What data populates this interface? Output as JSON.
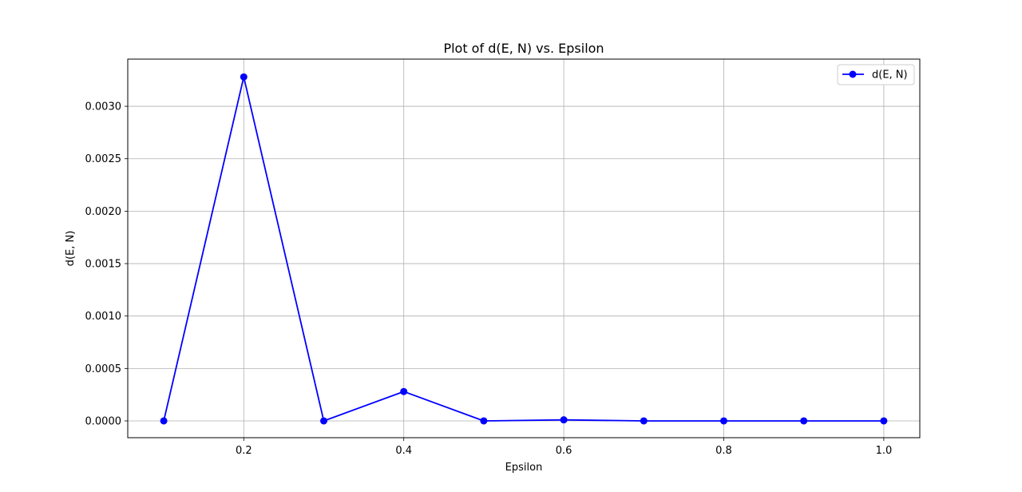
{
  "chart_data": {
    "type": "line",
    "title": "Plot of d(E, N) vs. Epsilon",
    "xlabel": "Epsilon",
    "ylabel": "d(E, N)",
    "xlim": [
      0.055,
      1.045
    ],
    "ylim": [
      -0.00016,
      0.00345
    ],
    "x_ticks": [
      0.2,
      0.4,
      0.6,
      0.8,
      1.0
    ],
    "x_tick_labels": [
      "0.2",
      "0.4",
      "0.6",
      "0.8",
      "1.0"
    ],
    "y_ticks": [
      0.0,
      0.0005,
      0.001,
      0.0015,
      0.002,
      0.0025,
      0.003
    ],
    "y_tick_labels": [
      "0.0000",
      "0.0005",
      "0.0010",
      "0.0015",
      "0.0020",
      "0.0025",
      "0.0030"
    ],
    "grid": true,
    "legend": {
      "position": "top-right"
    },
    "series": [
      {
        "name": "d(E, N)",
        "color": "#0000ff",
        "marker": "circle",
        "x": [
          0.1,
          0.2,
          0.3,
          0.4,
          0.5,
          0.6,
          0.7,
          0.8,
          0.9,
          1.0
        ],
        "y": [
          0.0,
          0.00328,
          0.0,
          0.00028,
          0.0,
          1e-05,
          0.0,
          0.0,
          0.0,
          0.0
        ]
      }
    ]
  }
}
